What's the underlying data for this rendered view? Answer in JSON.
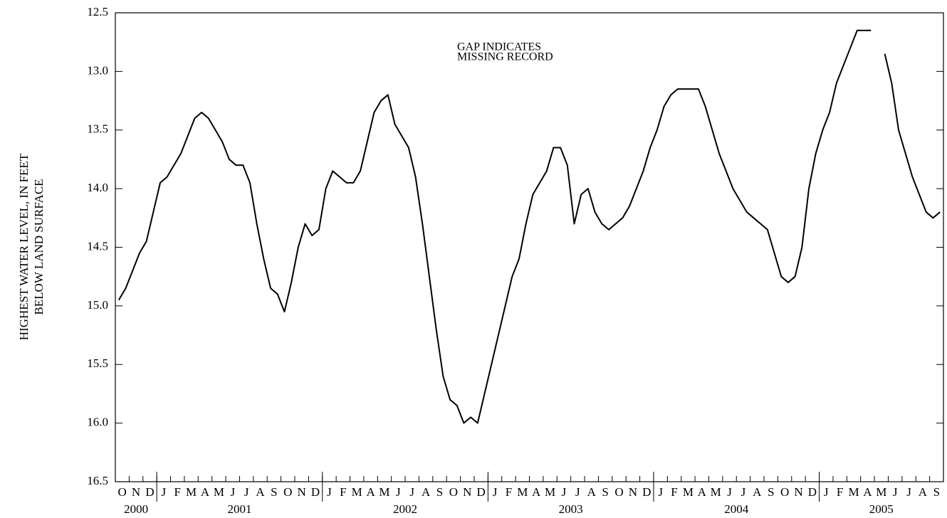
{
  "chart_data": {
    "type": "line",
    "y_label": [
      "HIGHEST WATER LEVEL, IN FEET",
      "BELOW LAND SURFACE"
    ],
    "annotation": [
      "GAP INDICATES",
      "MISSING RECORD"
    ],
    "categories": [
      "O",
      null,
      "N",
      null,
      "D",
      null,
      "J",
      null,
      "F",
      null,
      "M",
      null,
      "A",
      null,
      "M",
      null,
      "J",
      null,
      "J",
      null,
      "A",
      null,
      "S",
      null,
      "O",
      null,
      "N",
      null,
      "D",
      null,
      "J",
      null,
      "F",
      null,
      "M",
      null,
      "A",
      null,
      "M",
      null,
      "J",
      null,
      "J",
      null,
      "A",
      null,
      "S",
      null,
      "O",
      null,
      "N",
      null,
      "D",
      null,
      "J",
      null,
      "F",
      null,
      "M",
      null,
      "A",
      null,
      "M",
      null,
      "J",
      null,
      "J",
      null,
      "A",
      null,
      "S",
      null,
      "O",
      null,
      "N",
      null,
      "D",
      null,
      "J",
      null,
      "F",
      null,
      "M",
      null,
      "A",
      null,
      "M",
      null,
      "J",
      null,
      "J",
      null,
      "A",
      null,
      "S",
      null,
      "O",
      null,
      "N",
      null,
      "D",
      null,
      "J",
      null,
      "F",
      null,
      "M",
      null,
      "A",
      null,
      "M",
      null,
      "J",
      null,
      "J",
      null,
      "A",
      null,
      "S",
      null
    ],
    "year_labels": [
      "2000",
      null,
      null,
      null,
      null,
      null,
      "2001",
      null,
      null,
      null,
      null,
      null,
      null,
      null,
      null,
      null,
      null,
      null,
      null,
      null,
      null,
      null,
      null,
      null,
      null,
      null,
      null,
      null,
      null,
      null,
      "2002",
      null,
      null,
      null,
      null,
      null,
      null,
      null,
      null,
      null,
      null,
      null,
      null,
      null,
      null,
      null,
      null,
      null,
      null,
      null,
      null,
      null,
      null,
      null,
      "2003",
      null,
      null,
      null,
      null,
      null,
      null,
      null,
      null,
      null,
      null,
      null,
      null,
      null,
      null,
      null,
      null,
      null,
      null,
      null,
      null,
      null,
      null,
      null,
      "2004",
      null,
      null,
      null,
      null,
      null,
      null,
      null,
      null,
      null,
      null,
      null,
      null,
      null,
      null,
      null,
      null,
      null,
      null,
      null,
      null,
      null,
      null,
      null,
      "2005",
      null,
      null,
      null,
      null,
      null,
      null,
      null,
      null,
      null,
      null,
      null,
      null,
      null,
      null,
      null,
      null,
      null
    ],
    "values": [
      14.95,
      14.85,
      14.7,
      14.55,
      14.45,
      14.2,
      13.95,
      13.9,
      13.8,
      13.7,
      13.55,
      13.4,
      13.35,
      13.4,
      13.5,
      13.6,
      13.75,
      13.8,
      13.8,
      13.95,
      14.3,
      14.6,
      14.85,
      14.9,
      15.05,
      14.8,
      14.5,
      14.3,
      14.4,
      14.35,
      14.0,
      13.85,
      13.9,
      13.95,
      13.95,
      13.85,
      13.6,
      13.35,
      13.25,
      13.2,
      13.45,
      13.55,
      13.65,
      13.9,
      14.3,
      14.75,
      15.2,
      15.6,
      15.8,
      15.85,
      16.0,
      15.95,
      16.0,
      15.75,
      15.5,
      15.25,
      15.0,
      14.75,
      14.6,
      14.3,
      14.05,
      13.95,
      13.85,
      13.65,
      13.65,
      13.8,
      14.3,
      14.05,
      14.0,
      14.2,
      14.3,
      14.35,
      14.3,
      14.25,
      14.15,
      14.0,
      13.85,
      13.65,
      13.5,
      13.3,
      13.2,
      13.15,
      13.15,
      13.15,
      13.15,
      13.3,
      13.5,
      13.7,
      13.85,
      14.0,
      14.1,
      14.2,
      14.25,
      14.3,
      14.35,
      14.55,
      14.75,
      14.8,
      14.75,
      14.5,
      14.0,
      13.7,
      13.5,
      13.35,
      13.1,
      12.95,
      12.8,
      12.65,
      12.65,
      12.65,
      null,
      12.85,
      13.1,
      13.5,
      13.7,
      13.9,
      14.05,
      14.2,
      14.25,
      14.2
    ],
    "color": "#000000",
    "ylim": [
      12.5,
      16.5
    ],
    "y_inverted": true,
    "yticks": [
      12.5,
      {
        "value": 13,
        "label": "13.0"
      },
      13.5,
      {
        "value": 14,
        "label": "14.0"
      },
      14.5,
      {
        "value": 15,
        "label": "15.0"
      },
      15.5,
      {
        "value": 16,
        "label": "16.0"
      },
      16.5
    ],
    "grid": false
  }
}
